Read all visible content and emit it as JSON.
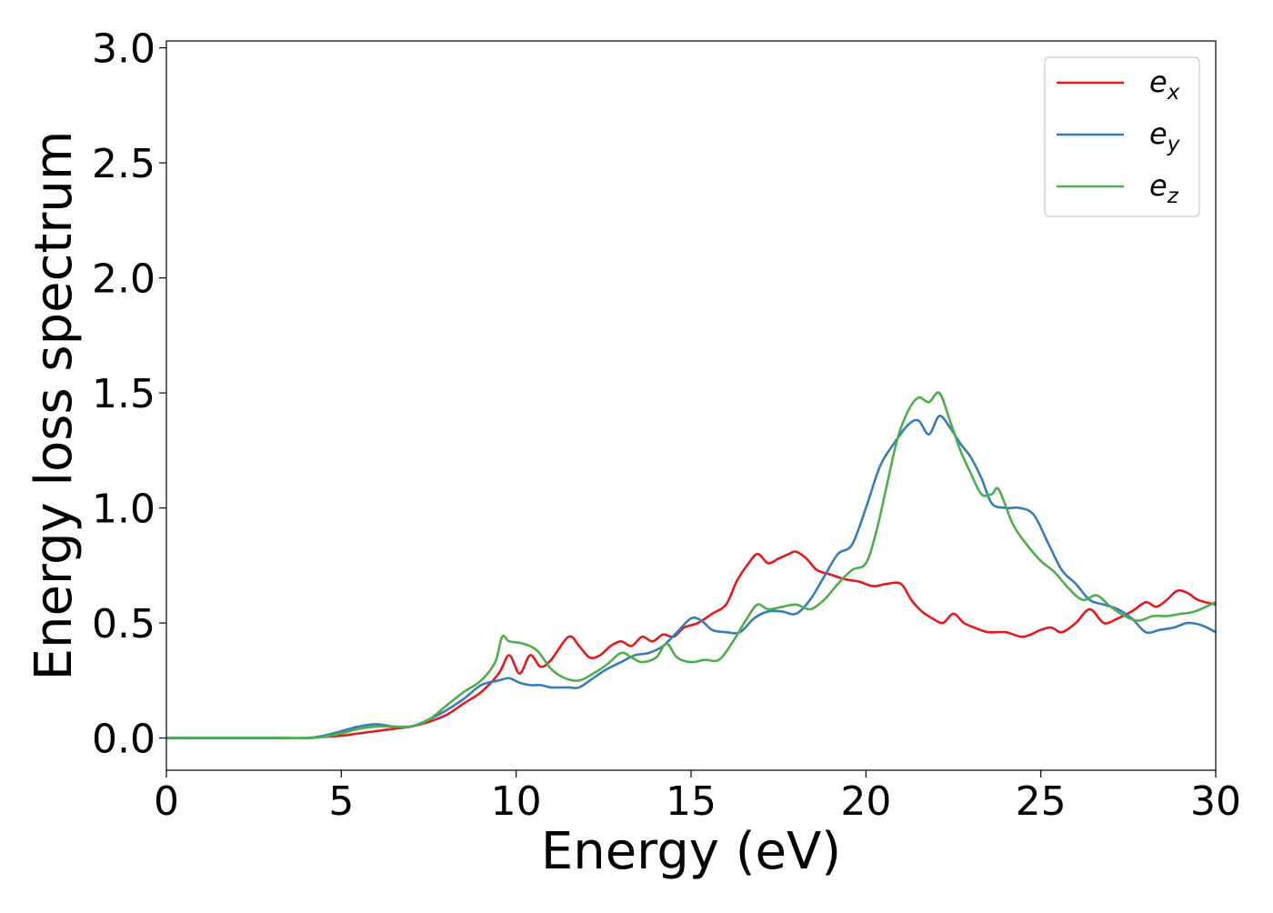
{
  "chart_data": {
    "type": "line",
    "xlabel": "Energy (eV)",
    "ylabel": "Energy loss spectrum",
    "xlim": [
      0,
      30
    ],
    "ylim": [
      -0.14,
      3.03
    ],
    "xticks": [
      0,
      5,
      10,
      15,
      20,
      25,
      30
    ],
    "xtick_labels": [
      "0",
      "5",
      "10",
      "15",
      "20",
      "25",
      "30"
    ],
    "yticks": [
      0.0,
      0.5,
      1.0,
      1.5,
      2.0,
      2.5,
      3.0
    ],
    "ytick_labels": [
      "0.0",
      "0.5",
      "1.0",
      "1.5",
      "2.0",
      "2.5",
      "3.0"
    ],
    "grid": false,
    "legend_position": "top-right",
    "series": [
      {
        "name": "e",
        "subscript": "x",
        "color": "#e41a1c",
        "x": [
          0,
          3,
          4,
          4.5,
          5,
          5.5,
          6,
          6.5,
          7,
          7.5,
          8,
          8.5,
          9,
          9.5,
          9.8,
          10.1,
          10.4,
          10.7,
          11,
          11.5,
          11.8,
          12.1,
          12.4,
          12.7,
          13,
          13.3,
          13.6,
          13.9,
          14.2,
          14.5,
          14.8,
          15.2,
          15.6,
          16,
          16.3,
          16.6,
          16.9,
          17.2,
          17.5,
          17.8,
          18,
          18.3,
          18.6,
          19,
          19.4,
          19.8,
          20.2,
          20.6,
          21,
          21.3,
          21.6,
          21.9,
          22.2,
          22.5,
          22.8,
          23.1,
          23.5,
          24,
          24.5,
          25,
          25.3,
          25.6,
          26,
          26.4,
          26.8,
          27.2,
          27.6,
          28,
          28.3,
          28.6,
          28.9,
          29.2,
          29.5,
          30
        ],
        "y": [
          0.0,
          0.0,
          0.0,
          0.005,
          0.01,
          0.02,
          0.03,
          0.04,
          0.05,
          0.07,
          0.1,
          0.15,
          0.2,
          0.28,
          0.36,
          0.28,
          0.36,
          0.31,
          0.34,
          0.44,
          0.4,
          0.35,
          0.36,
          0.4,
          0.42,
          0.4,
          0.44,
          0.42,
          0.45,
          0.44,
          0.48,
          0.5,
          0.54,
          0.58,
          0.68,
          0.75,
          0.8,
          0.76,
          0.78,
          0.8,
          0.81,
          0.78,
          0.73,
          0.71,
          0.69,
          0.68,
          0.66,
          0.67,
          0.67,
          0.6,
          0.55,
          0.52,
          0.5,
          0.54,
          0.5,
          0.48,
          0.46,
          0.46,
          0.44,
          0.47,
          0.48,
          0.46,
          0.5,
          0.56,
          0.5,
          0.52,
          0.55,
          0.59,
          0.57,
          0.6,
          0.64,
          0.63,
          0.6,
          0.58
        ]
      },
      {
        "name": "e",
        "subscript": "y",
        "color": "#377eb8",
        "x": [
          0,
          3,
          4,
          4.5,
          5,
          5.5,
          6,
          6.5,
          7,
          7.5,
          8,
          8.5,
          9,
          9.5,
          9.8,
          10.1,
          10.4,
          10.7,
          11,
          11.5,
          11.8,
          12.2,
          12.6,
          13,
          13.4,
          13.8,
          14.2,
          14.6,
          15,
          15.3,
          15.6,
          16,
          16.4,
          16.8,
          17.2,
          17.6,
          18,
          18.4,
          18.8,
          19.2,
          19.6,
          20,
          20.4,
          20.8,
          21.2,
          21.5,
          21.8,
          22.1,
          22.4,
          22.7,
          23,
          23.3,
          23.6,
          24,
          24.4,
          24.8,
          25.2,
          25.6,
          26,
          26.4,
          26.8,
          27.2,
          27.6,
          28,
          28.4,
          28.8,
          29.2,
          29.6,
          30
        ],
        "y": [
          0.0,
          0.0,
          0.0,
          0.01,
          0.03,
          0.05,
          0.06,
          0.05,
          0.05,
          0.08,
          0.12,
          0.17,
          0.23,
          0.25,
          0.26,
          0.24,
          0.23,
          0.23,
          0.22,
          0.22,
          0.22,
          0.26,
          0.3,
          0.33,
          0.36,
          0.37,
          0.4,
          0.46,
          0.52,
          0.51,
          0.47,
          0.46,
          0.46,
          0.52,
          0.55,
          0.55,
          0.54,
          0.6,
          0.7,
          0.8,
          0.84,
          1.0,
          1.18,
          1.28,
          1.36,
          1.38,
          1.32,
          1.4,
          1.35,
          1.28,
          1.22,
          1.13,
          1.02,
          1.0,
          1.0,
          0.97,
          0.85,
          0.73,
          0.67,
          0.6,
          0.58,
          0.56,
          0.52,
          0.46,
          0.47,
          0.48,
          0.5,
          0.49,
          0.46
        ]
      },
      {
        "name": "e",
        "subscript": "z",
        "color": "#4daf4a",
        "x": [
          0,
          3,
          4,
          4.5,
          5,
          5.5,
          6,
          6.5,
          7,
          7.5,
          8,
          8.5,
          9,
          9.4,
          9.6,
          9.8,
          10.2,
          10.6,
          11,
          11.4,
          11.8,
          12.2,
          12.6,
          13,
          13.3,
          13.6,
          14,
          14.3,
          14.6,
          15,
          15.4,
          15.8,
          16.2,
          16.6,
          16.9,
          17.2,
          17.6,
          18,
          18.4,
          18.8,
          19.2,
          19.6,
          20,
          20.3,
          20.6,
          20.9,
          21.2,
          21.5,
          21.8,
          22.1,
          22.4,
          22.7,
          23,
          23.3,
          23.6,
          23.8,
          24.2,
          24.6,
          25,
          25.4,
          25.8,
          26.2,
          26.6,
          27,
          27.4,
          27.8,
          28.2,
          28.6,
          29,
          29.4,
          30
        ],
        "y": [
          0.0,
          0.0,
          0.0,
          0.005,
          0.02,
          0.04,
          0.05,
          0.05,
          0.05,
          0.08,
          0.14,
          0.2,
          0.25,
          0.33,
          0.44,
          0.42,
          0.41,
          0.38,
          0.3,
          0.26,
          0.25,
          0.28,
          0.32,
          0.37,
          0.35,
          0.33,
          0.35,
          0.41,
          0.35,
          0.33,
          0.34,
          0.34,
          0.42,
          0.52,
          0.58,
          0.56,
          0.57,
          0.58,
          0.56,
          0.6,
          0.67,
          0.73,
          0.76,
          0.9,
          1.1,
          1.3,
          1.42,
          1.48,
          1.46,
          1.5,
          1.38,
          1.25,
          1.15,
          1.06,
          1.06,
          1.08,
          0.93,
          0.84,
          0.77,
          0.72,
          0.65,
          0.6,
          0.62,
          0.57,
          0.53,
          0.51,
          0.53,
          0.53,
          0.54,
          0.55,
          0.59
        ]
      }
    ]
  }
}
